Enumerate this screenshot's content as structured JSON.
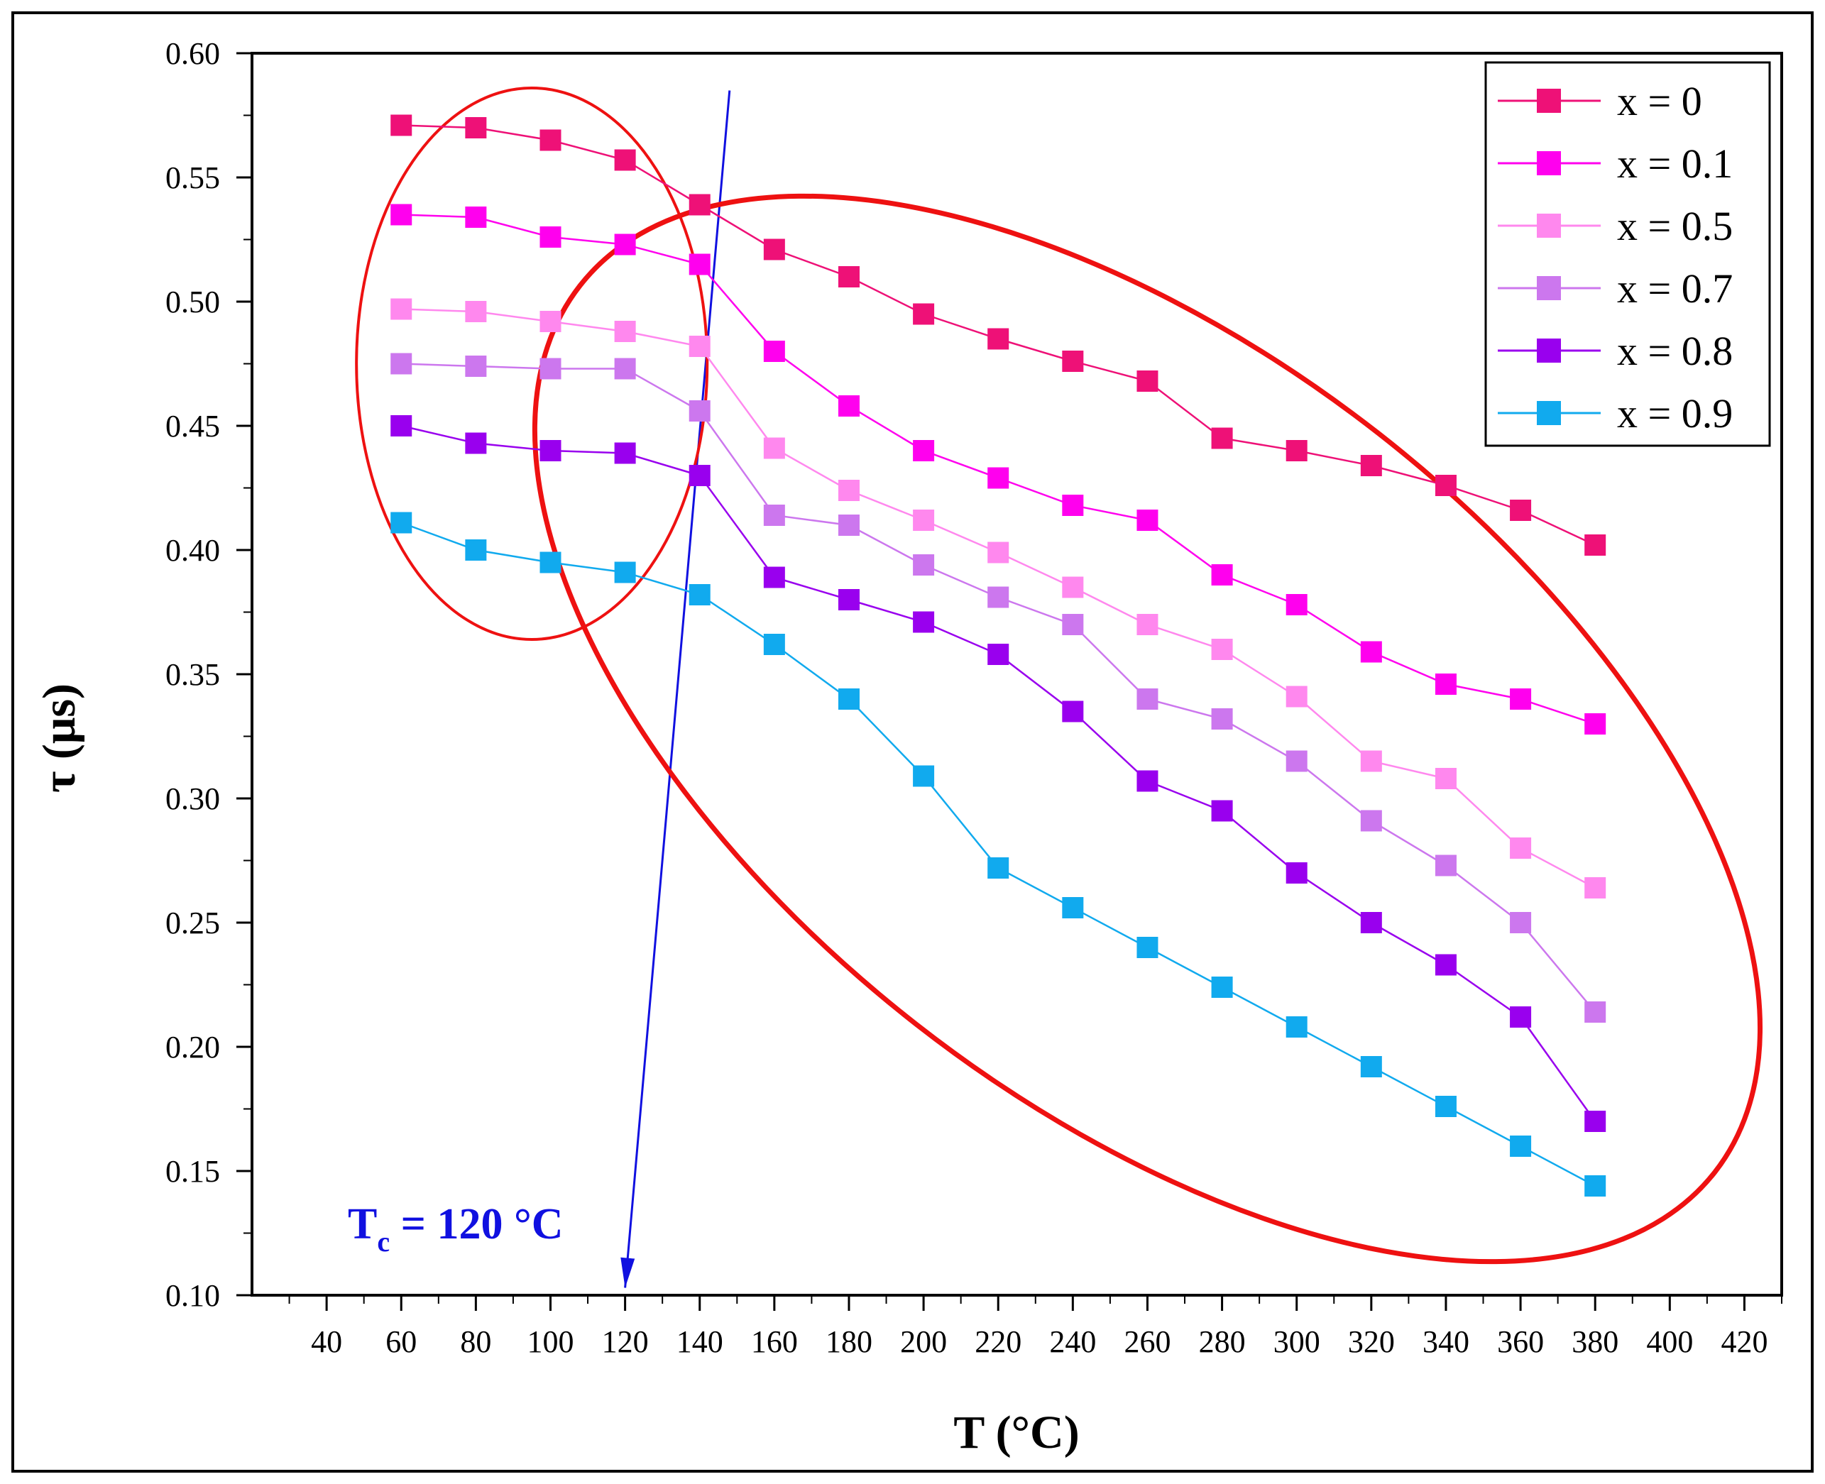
{
  "chart_data": {
    "type": "line",
    "title": "",
    "xlabel": "T (°C)",
    "ylabel": "τ (μs)",
    "xlim": [
      20,
      430
    ],
    "ylim": [
      0.1,
      0.6
    ],
    "x_ticks": [
      40,
      60,
      80,
      100,
      120,
      140,
      160,
      180,
      200,
      220,
      240,
      260,
      280,
      300,
      320,
      340,
      360,
      380,
      400,
      420
    ],
    "x_tick_labels": [
      "40",
      "60",
      "80",
      "100",
      "120",
      "140",
      "160",
      "180",
      "200",
      "220",
      "240",
      "260",
      "280",
      "300",
      "320",
      "340",
      "360",
      "380",
      "400",
      "420"
    ],
    "y_ticks": [
      0.1,
      0.15,
      0.2,
      0.25,
      0.3,
      0.35,
      0.4,
      0.45,
      0.5,
      0.55,
      0.6
    ],
    "y_tick_labels": [
      "0.10",
      "0.15",
      "0.20",
      "0.25",
      "0.30",
      "0.35",
      "0.40",
      "0.45",
      "0.50",
      "0.55",
      "0.60"
    ],
    "legend_position": "top-right",
    "x": [
      60,
      80,
      100,
      120,
      140,
      160,
      180,
      200,
      220,
      240,
      260,
      280,
      300,
      320,
      340,
      360,
      380
    ],
    "series": [
      {
        "name": "x = 0",
        "color": "#ee1177",
        "values": [
          0.571,
          0.57,
          0.565,
          0.557,
          0.539,
          0.521,
          0.51,
          0.495,
          0.485,
          0.476,
          0.468,
          0.445,
          0.44,
          0.434,
          0.426,
          0.416,
          0.402
        ]
      },
      {
        "name": "x = 0.1",
        "color": "#ff00ee",
        "values": [
          0.535,
          0.534,
          0.526,
          0.523,
          0.515,
          0.48,
          0.458,
          0.44,
          0.429,
          0.418,
          0.412,
          0.39,
          0.378,
          0.359,
          0.346,
          0.34,
          0.33
        ]
      },
      {
        "name": "x = 0.5",
        "color": "#ff88ee",
        "values": [
          0.497,
          0.496,
          0.492,
          0.488,
          0.482,
          0.441,
          0.424,
          0.412,
          0.399,
          0.385,
          0.37,
          0.36,
          0.341,
          0.315,
          0.308,
          0.28,
          0.264
        ]
      },
      {
        "name": "x = 0.7",
        "color": "#cc77ee",
        "values": [
          0.475,
          0.474,
          0.473,
          0.473,
          0.456,
          0.414,
          0.41,
          0.394,
          0.381,
          0.37,
          0.34,
          0.332,
          0.315,
          0.291,
          0.273,
          0.25,
          0.214
        ]
      },
      {
        "name": "x = 0.8",
        "color": "#9900ee",
        "values": [
          0.45,
          0.443,
          0.44,
          0.439,
          0.43,
          0.389,
          0.38,
          0.371,
          0.358,
          0.335,
          0.307,
          0.295,
          0.27,
          0.25,
          0.233,
          0.212,
          0.17
        ]
      },
      {
        "name": "x = 0.9",
        "color": "#11aaee",
        "values": [
          0.411,
          0.4,
          0.395,
          0.391,
          0.382,
          0.362,
          0.34,
          0.309,
          0.272,
          0.256,
          0.24,
          0.224,
          0.208,
          0.192,
          0.176,
          0.16,
          0.144
        ]
      }
    ],
    "annotations": [
      {
        "kind": "text",
        "label_main": "T",
        "label_sub": "c",
        "label_rest": " = 120 °C",
        "color": "#1010e0"
      },
      {
        "kind": "arrow",
        "color": "#1010e0",
        "from": [
          148,
          0.585
        ],
        "to": [
          120,
          0.103
        ]
      },
      {
        "kind": "ellipse",
        "color": "#ee1111",
        "center": [
          95,
          0.475
        ],
        "semi_axes": [
          47,
          0.111
        ],
        "angle_deg": 0
      },
      {
        "kind": "ellipse",
        "color": "#ee1111",
        "center": [
          260,
          0.328
        ],
        "semi_axes": [
          193,
          0.151
        ],
        "angle_deg": 38
      }
    ]
  }
}
